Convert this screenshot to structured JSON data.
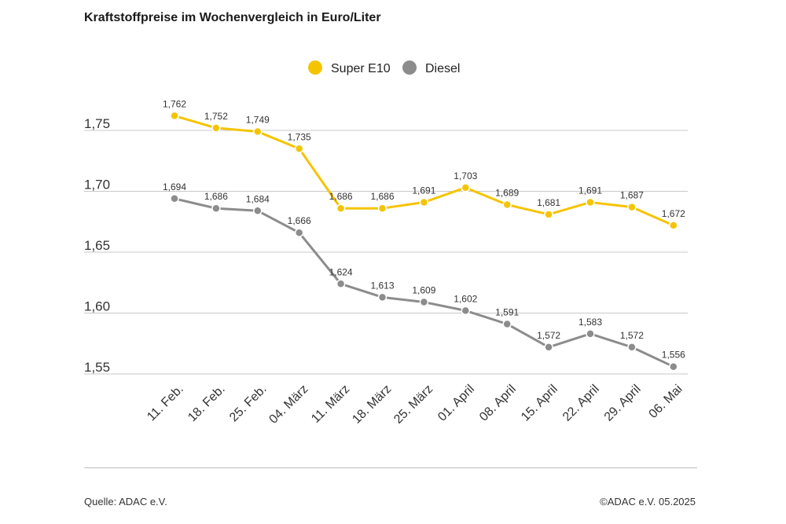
{
  "chart_data": {
    "type": "line",
    "title": "Kraftstoffpreise im Wochenvergleich in Euro/Liter",
    "xlabel": "",
    "ylabel": "",
    "categories": [
      "11. Feb.",
      "18. Feb.",
      "25. Feb.",
      "04. März",
      "11. März",
      "18. März",
      "25. März",
      "01. April",
      "08. April",
      "15. April",
      "22. April",
      "29. April",
      "06. Mai"
    ],
    "series": [
      {
        "name": "Super E10",
        "color": "#f5c400",
        "values": [
          1.762,
          1.752,
          1.749,
          1.735,
          1.686,
          1.686,
          1.691,
          1.703,
          1.689,
          1.681,
          1.691,
          1.687,
          1.672
        ],
        "labels": [
          "1,762",
          "1,752",
          "1,749",
          "1,735",
          "1,686",
          "1,686",
          "1,691",
          "1,703",
          "1,689",
          "1,681",
          "1,691",
          "1,687",
          "1,672"
        ]
      },
      {
        "name": "Diesel",
        "color": "#8c8c8c",
        "values": [
          1.694,
          1.686,
          1.684,
          1.666,
          1.624,
          1.613,
          1.609,
          1.602,
          1.591,
          1.572,
          1.583,
          1.572,
          1.556
        ],
        "labels": [
          "1,694",
          "1,686",
          "1,684",
          "1,666",
          "1,624",
          "1,613",
          "1,609",
          "1,602",
          "1,591",
          "1,572",
          "1,583",
          "1,572",
          "1,556"
        ]
      }
    ],
    "yticks": [
      1.55,
      1.6,
      1.65,
      1.7,
      1.75
    ],
    "ytick_labels": [
      "1,55",
      "1,60",
      "1,65",
      "1,70",
      "1,75"
    ],
    "ylim": [
      1.55,
      1.75
    ],
    "legend_position": "top-center",
    "grid": true
  },
  "footer": {
    "source": "Quelle: ADAC e.V.",
    "copyright": "©ADAC e.V. 05.2025"
  }
}
